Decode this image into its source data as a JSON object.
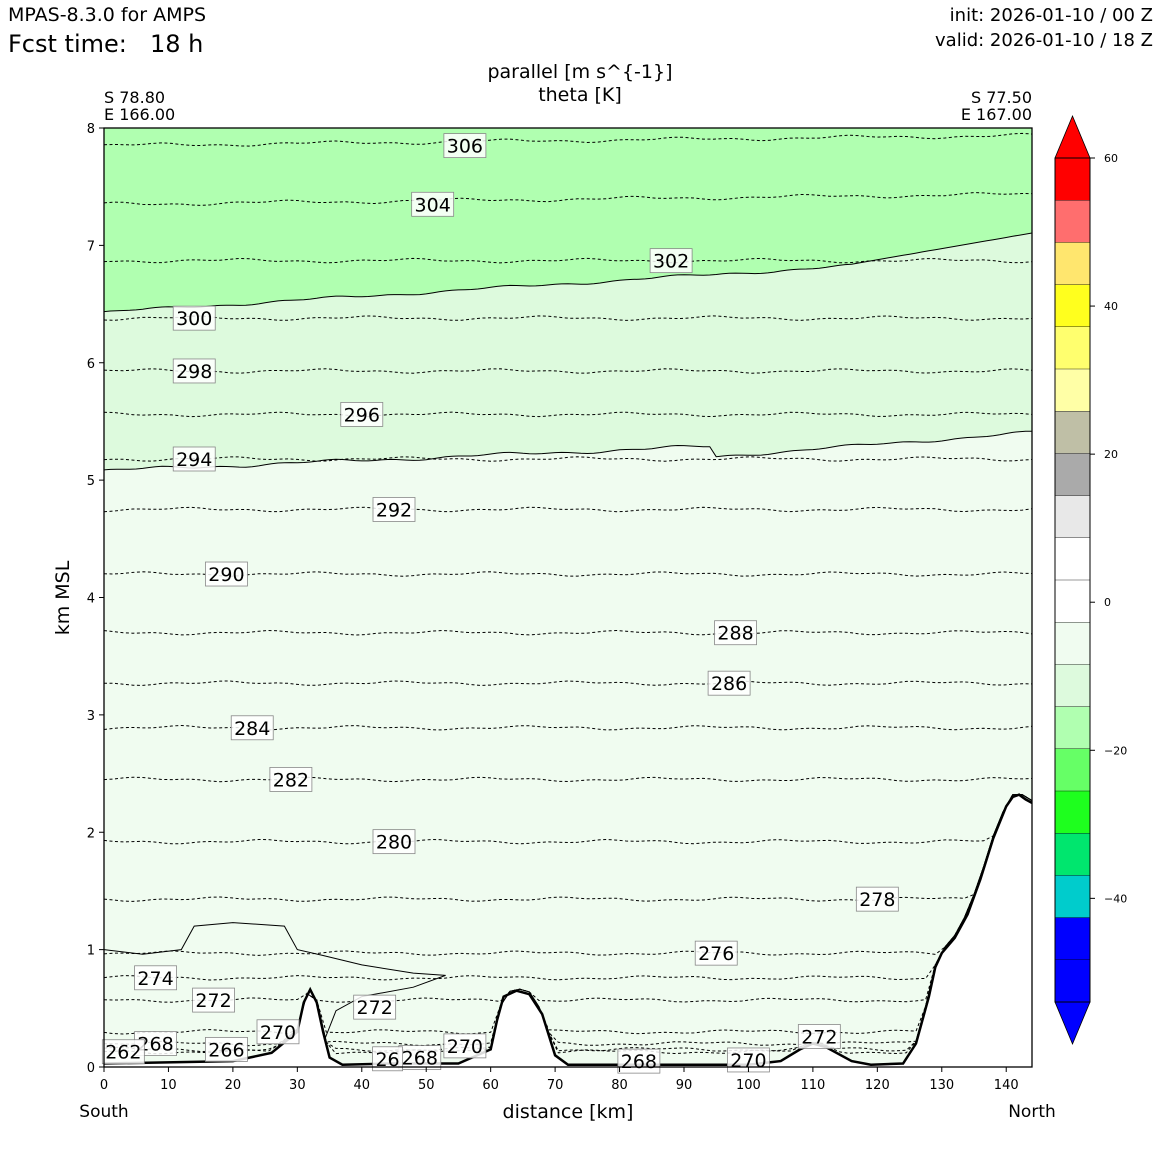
{
  "header": {
    "model": "MPAS-8.3.0 for AMPS",
    "fcst_label": "Fcst time:",
    "fcst_value": "18 h",
    "init": "init: 2026-01-10 / 00 Z",
    "valid": "valid: 2026-01-10 / 18 Z"
  },
  "chart_data": {
    "type": "cross-section",
    "title_line1": "parallel [m s^{-1}]",
    "title_line2": "theta [K]",
    "left_point": {
      "lat": "S 78.80",
      "lon": "E 166.00"
    },
    "right_point": {
      "lat": "S 77.50",
      "lon": "E 167.00"
    },
    "xlabel": "distance [km]",
    "ylabel": "km MSL",
    "x_end_left": "South",
    "x_end_right": "North",
    "xlim": [
      0,
      144
    ],
    "ylim": [
      0,
      8
    ],
    "x_ticks": [
      0,
      10,
      20,
      30,
      40,
      50,
      60,
      70,
      80,
      90,
      100,
      110,
      120,
      130,
      140
    ],
    "y_ticks": [
      0,
      1,
      2,
      3,
      4,
      5,
      6,
      7,
      8
    ],
    "wind_fill": {
      "bands": [
        {
          "from_km": 0,
          "to_km": "terrain-to-5.1",
          "range": "-10 to 0",
          "color": "#f0fcf0"
        },
        {
          "from_km": "5.1",
          "to_km": "6.5",
          "range": "-15 to -10",
          "color": "#ddfadd"
        },
        {
          "from_km": "6.5",
          "to_km": 8,
          "range": "-20 to -15",
          "color": "#b0ffb0"
        }
      ]
    },
    "terrain_profile": [
      [
        0,
        0.03
      ],
      [
        20,
        0.05
      ],
      [
        26,
        0.12
      ],
      [
        30,
        0.3
      ],
      [
        31,
        0.55
      ],
      [
        32,
        0.66
      ],
      [
        33,
        0.55
      ],
      [
        34,
        0.3
      ],
      [
        35,
        0.08
      ],
      [
        37,
        0.02
      ],
      [
        45,
        0.03
      ],
      [
        55,
        0.03
      ],
      [
        60,
        0.15
      ],
      [
        61,
        0.4
      ],
      [
        62,
        0.6
      ],
      [
        64,
        0.65
      ],
      [
        66,
        0.62
      ],
      [
        68,
        0.45
      ],
      [
        70,
        0.1
      ],
      [
        72,
        0.02
      ],
      [
        100,
        0.02
      ],
      [
        105,
        0.05
      ],
      [
        108,
        0.15
      ],
      [
        110,
        0.2
      ],
      [
        112,
        0.17
      ],
      [
        116,
        0.05
      ],
      [
        119,
        0.02
      ],
      [
        124,
        0.03
      ],
      [
        126,
        0.2
      ],
      [
        128,
        0.6
      ],
      [
        129,
        0.85
      ],
      [
        130,
        0.97
      ],
      [
        132,
        1.1
      ],
      [
        134,
        1.3
      ],
      [
        136,
        1.6
      ],
      [
        138,
        1.95
      ],
      [
        140,
        2.22
      ],
      [
        141,
        2.3
      ],
      [
        142,
        2.32
      ],
      [
        143,
        2.28
      ],
      [
        144,
        2.25
      ]
    ],
    "theta_contours": [
      {
        "label": "306",
        "height_km": 7.85,
        "label_x_km": 56
      },
      {
        "label": "304",
        "height_km": 7.35,
        "label_x_km": 51
      },
      {
        "label": "302",
        "height_km": 6.87,
        "label_x_km": 88
      },
      {
        "label": "300",
        "height_km": 6.38,
        "label_x_km": 14
      },
      {
        "label": "298",
        "height_km": 5.93,
        "label_x_km": 14
      },
      {
        "label": "296",
        "height_km": 5.56,
        "label_x_km": 40
      },
      {
        "label": "294",
        "height_km": 5.18,
        "label_x_km": 14
      },
      {
        "label": "292",
        "height_km": 4.75,
        "label_x_km": 45
      },
      {
        "label": "290",
        "height_km": 4.2,
        "label_x_km": 19
      },
      {
        "label": "288",
        "height_km": 3.7,
        "label_x_km": 98
      },
      {
        "label": "286",
        "height_km": 3.27,
        "label_x_km": 97
      },
      {
        "label": "284",
        "height_km": 2.89,
        "label_x_km": 23
      },
      {
        "label": "282",
        "height_km": 2.45,
        "label_x_km": 29
      },
      {
        "label": "280",
        "height_km": 1.92,
        "label_x_km": 45
      },
      {
        "label": "278",
        "height_km": 1.43,
        "label_x_km": 120
      },
      {
        "label": "276",
        "height_km": 0.97,
        "label_x_km": 95
      },
      {
        "label": "274",
        "height_km": 0.76,
        "label_x_km": 8
      },
      {
        "label": "272",
        "height_km": 0.57,
        "label_x_km": 17
      },
      {
        "label": "270",
        "height_km": 0.3,
        "label_x_km": 27
      },
      {
        "label": "268",
        "height_km": 0.2,
        "label_x_km": 8
      },
      {
        "label": "266",
        "height_km": 0.15,
        "label_x_km": 19
      },
      {
        "label": "262",
        "height_km": 0.13,
        "label_x_km": 3
      }
    ],
    "extra_labels": [
      {
        "label": "272",
        "x_km": 42,
        "y_km": 0.51
      },
      {
        "label": "270",
        "x_km": 56,
        "y_km": 0.18
      },
      {
        "label": "268",
        "x_km": 49,
        "y_km": 0.08
      },
      {
        "label": "26",
        "x_km": 44,
        "y_km": 0.07
      },
      {
        "label": "268",
        "x_km": 83,
        "y_km": 0.05
      },
      {
        "label": "270",
        "x_km": 100,
        "y_km": 0.06
      },
      {
        "label": "272",
        "x_km": 111,
        "y_km": 0.26
      }
    ],
    "colorbar": {
      "ticks": [
        60,
        40,
        20,
        0,
        -20,
        -40
      ],
      "tick_labels": [
        "60",
        "40",
        "20",
        "0",
        "−20",
        "−40"
      ],
      "colors_top_to_bottom": [
        "#ff0000",
        "#ff6e6e",
        "#ffe66e",
        "#ffff1e",
        "#ffff6e",
        "#ffffa6",
        "#bfbfa6",
        "#aaaaaa",
        "#e8e8e8",
        "#ffffff",
        "#ffffff",
        "#f0fcf0",
        "#ddfadd",
        "#b0ffb0",
        "#66ff66",
        "#1eff1e",
        "#00e66e",
        "#00cccc",
        "#0000ff",
        "#0000ff"
      ],
      "top_extend_color": "#ff0000",
      "bottom_extend_color": "#0000ff"
    }
  }
}
